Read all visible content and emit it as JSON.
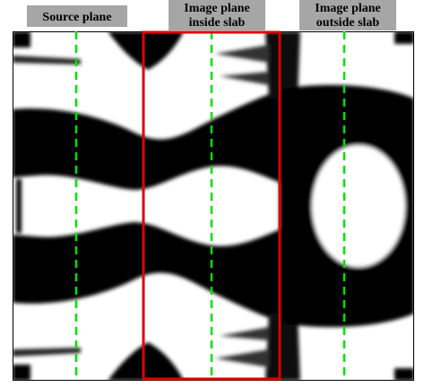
{
  "labels": [
    {
      "lines": [
        "Source plane"
      ]
    },
    {
      "lines": [
        "Image plane",
        "inside slab"
      ]
    },
    {
      "lines": [
        "Image plane",
        "outside slab"
      ]
    }
  ]
}
